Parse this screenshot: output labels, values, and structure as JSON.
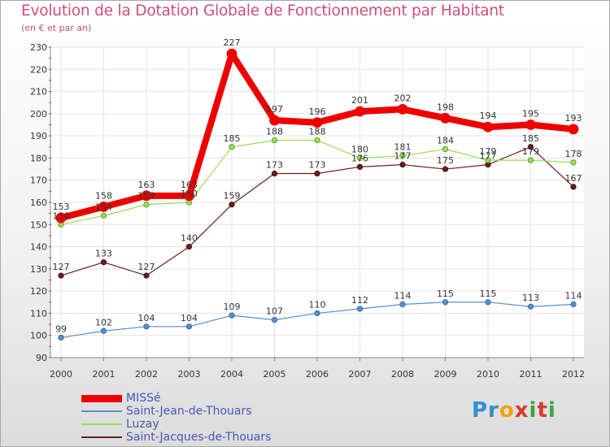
{
  "title": "Evolution de la Dotation Globale de Fonctionnement par Habitant",
  "subtitle": "(en € et par an)",
  "logo": {
    "parts": [
      "Pr",
      "o",
      "x",
      "i",
      "t",
      "i"
    ]
  },
  "chart_data": {
    "type": "line",
    "title": "Evolution de la Dotation Globale de Fonctionnement par Habitant",
    "subtitle": "(en € et par an)",
    "xlabel": "",
    "ylabel": "",
    "categories": [
      "2000",
      "2001",
      "2002",
      "2003",
      "2004",
      "2005",
      "2006",
      "2007",
      "2008",
      "2009",
      "2010",
      "2011",
      "2012"
    ],
    "yticks": [
      90,
      100,
      110,
      120,
      130,
      140,
      150,
      160,
      170,
      180,
      190,
      200,
      210,
      220,
      230
    ],
    "ylim": [
      90,
      230
    ],
    "grid": true,
    "legend_position": "bottom-left",
    "series": [
      {
        "name": "MISSé",
        "color": "#ee0000",
        "values": [
          153,
          158,
          163,
          163,
          227,
          197,
          196,
          201,
          202,
          198,
          194,
          195,
          193
        ]
      },
      {
        "name": "Saint-Jean-de-Thouars",
        "color": "#5b8fc9",
        "values": [
          99,
          102,
          104,
          104,
          109,
          107,
          110,
          112,
          114,
          115,
          115,
          113,
          114
        ]
      },
      {
        "name": "Luzay",
        "color": "#99dd55",
        "values": [
          150,
          154,
          159,
          160,
          185,
          188,
          188,
          180,
          181,
          184,
          179,
          179,
          178
        ]
      },
      {
        "name": "Saint-Jacques-de-Thouars",
        "color": "#6a1f1f",
        "values": [
          127,
          133,
          127,
          140,
          159,
          173,
          173,
          176,
          177,
          175,
          177,
          185,
          167
        ]
      }
    ]
  }
}
